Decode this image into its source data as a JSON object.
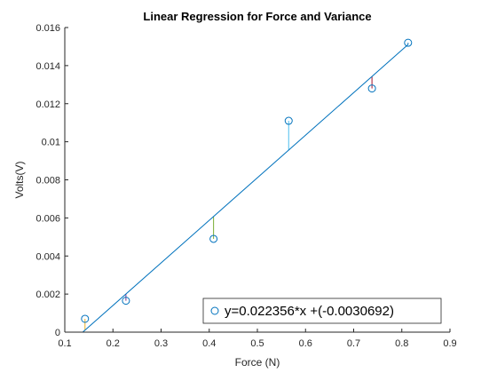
{
  "chart_data": {
    "type": "scatter",
    "title": "Linear Regression for Force and Variance",
    "xlabel": "Force (N)",
    "ylabel": "Volts(V)",
    "xlim": [
      0.1,
      0.9
    ],
    "ylim": [
      0,
      0.016
    ],
    "x_ticks": [
      "0.1",
      "0.2",
      "0.3",
      "0.4",
      "0.5",
      "0.6",
      "0.7",
      "0.8",
      "0.9"
    ],
    "y_ticks": [
      "0",
      "0.002",
      "0.004",
      "0.006",
      "0.008",
      "0.01",
      "0.012",
      "0.014",
      "0.016"
    ],
    "grid": false,
    "legend_position": "bottom-right",
    "series": [
      {
        "name": "y=0.022356*x +(-0.0030692)",
        "marker": "circle",
        "color": "#0072BD",
        "x": [
          0.142,
          0.227,
          0.409,
          0.565,
          0.738,
          0.813
        ],
        "y": [
          0.0007,
          0.00165,
          0.0049,
          0.0111,
          0.0128,
          0.0152
        ]
      }
    ],
    "fit_line": {
      "slope": 0.022356,
      "intercept": -0.0030692,
      "color": "#0072BD"
    },
    "residual_colors": [
      "#EDB120",
      "#7E2F8E",
      "#77AC30",
      "#4DBEEE",
      "#A2142F",
      "#0072BD"
    ]
  }
}
